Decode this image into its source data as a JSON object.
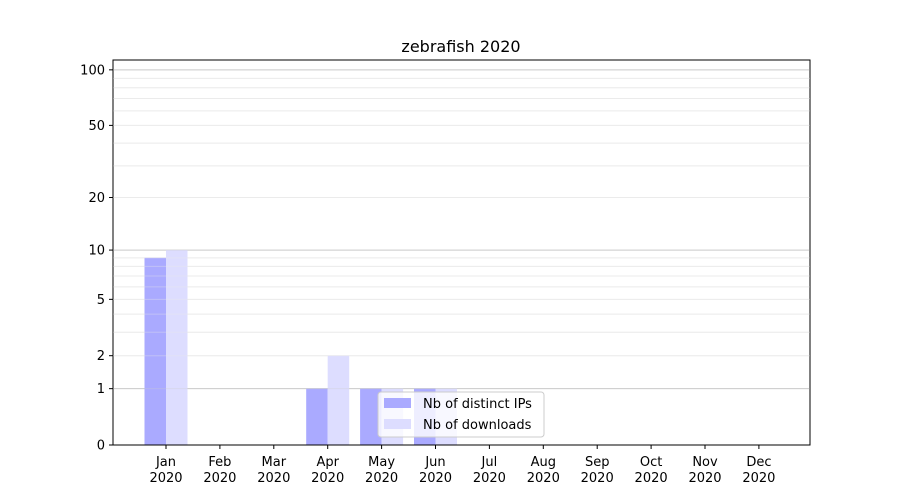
{
  "chart_data": {
    "type": "bar",
    "title": "zebrafish 2020",
    "xlabel": "",
    "ylabel": "",
    "yscale": "log(1+y)",
    "ylim": [
      0,
      113
    ],
    "grid": true,
    "legend_position": "bottom-center",
    "categories": [
      "Jan\n2020",
      "Feb\n2020",
      "Mar\n2020",
      "Apr\n2020",
      "May\n2020",
      "Jun\n2020",
      "Jul\n2020",
      "Aug\n2020",
      "Sep\n2020",
      "Oct\n2020",
      "Nov\n2020",
      "Dec\n2020"
    ],
    "ytick_labels": [
      "0",
      "1",
      "2",
      "5",
      "10",
      "20",
      "50",
      "100"
    ],
    "yticks": [
      0,
      1,
      2,
      5,
      10,
      20,
      50,
      100
    ],
    "series": [
      {
        "name": "Nb of distinct IPs",
        "color": "#aaaaff",
        "values": [
          9,
          0,
          0,
          1,
          1,
          1,
          0,
          0,
          0,
          0,
          0,
          0
        ]
      },
      {
        "name": "Nb of downloads",
        "color": "#ddddff",
        "values": [
          10,
          0,
          0,
          2,
          1,
          1,
          0,
          0,
          0,
          0,
          0,
          0
        ]
      }
    ]
  }
}
